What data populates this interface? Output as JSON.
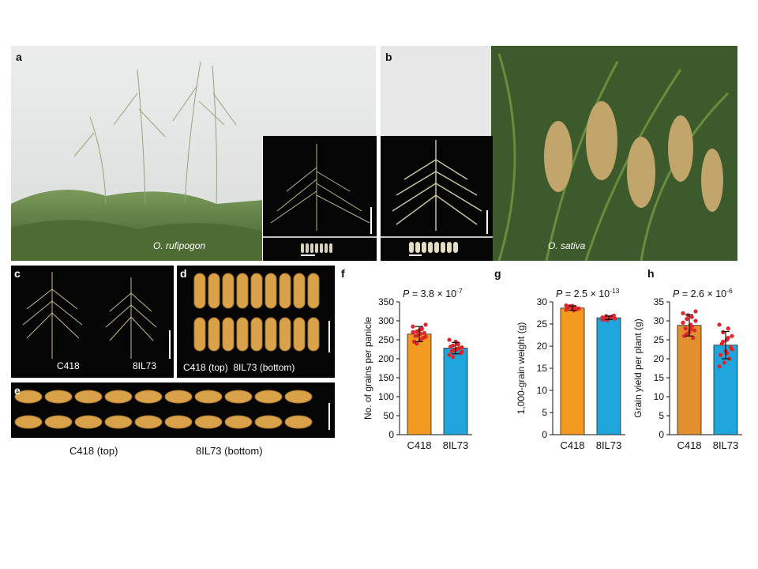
{
  "panels": {
    "a": {
      "label": "a",
      "species": "O. rufipogon"
    },
    "b": {
      "label": "b",
      "species": "O. sativa"
    },
    "c": {
      "label": "c",
      "left": "C418",
      "right": "8IL73"
    },
    "d": {
      "label": "d",
      "caption": "C418 (top)  8IL73 (bottom)"
    },
    "e": {
      "label": "e",
      "caption_left": "C418 (top)",
      "caption_right": "8IL73 (bottom)"
    }
  },
  "chart_data": [
    {
      "type": "bar",
      "panel": "f",
      "categories": [
        "C418",
        "8IL73"
      ],
      "values": [
        265,
        228
      ],
      "errors": [
        20,
        15
      ],
      "colors": [
        "#f29a1f",
        "#1ea6dd"
      ],
      "ylabel": "No. of grains per panicle",
      "ylim": [
        0,
        350
      ],
      "yticks": [
        0,
        50,
        100,
        150,
        200,
        250,
        300,
        350
      ],
      "p_text": "P = 3.8 × 10",
      "p_exp": "-7",
      "points": [
        [
          285,
          280,
          272,
          290,
          250,
          260,
          268,
          275,
          245,
          255,
          262,
          270,
          278,
          240,
          258,
          266
        ],
        [
          250,
          240,
          235,
          230,
          225,
          220,
          215,
          245,
          232,
          228,
          222,
          210,
          238,
          205,
          218,
          226
        ]
      ]
    },
    {
      "type": "bar",
      "panel": "g",
      "categories": [
        "C418",
        "8IL73"
      ],
      "values": [
        28.6,
        26.4
      ],
      "errors": [
        0.5,
        0.4
      ],
      "colors": [
        "#f29a1f",
        "#1ea6dd"
      ],
      "ylabel": "1,000-grain weight (g)",
      "ylim": [
        0,
        30
      ],
      "yticks": [
        0,
        5,
        10,
        15,
        20,
        25,
        30
      ],
      "p_text": "P = 2.5 × 10",
      "p_exp": "-13",
      "points": [
        [
          28.2,
          28.8,
          29.0,
          28.5,
          28.1,
          28.9,
          28.4,
          29.1,
          28.6,
          28.3,
          28.7,
          29.2
        ],
        [
          26.0,
          26.5,
          26.8,
          26.2,
          26.6,
          26.1,
          26.9,
          26.4,
          26.3,
          26.7,
          25.9,
          26.5
        ]
      ]
    },
    {
      "type": "bar",
      "panel": "h",
      "categories": [
        "C418",
        "8IL73"
      ],
      "values": [
        28.8,
        23.6
      ],
      "errors": [
        2.8,
        3.6
      ],
      "colors": [
        "#e28f30",
        "#1ea6dd"
      ],
      "ylabel": "Grain yield per plant (g)",
      "ylim": [
        0,
        35
      ],
      "yticks": [
        0,
        5,
        10,
        15,
        20,
        25,
        30,
        35
      ],
      "p_text": "P = 2.6 × 10",
      "p_exp": "-6",
      "points": [
        [
          32,
          31,
          30.5,
          30,
          29,
          28,
          27.5,
          27,
          26,
          25.5,
          31.5,
          29.5,
          28.5,
          26.5,
          32.5,
          27.8
        ],
        [
          29,
          28,
          27,
          26,
          25,
          24,
          23,
          22,
          21,
          20,
          19,
          18,
          25.5,
          24.5,
          22.5,
          21.5
        ]
      ]
    }
  ]
}
